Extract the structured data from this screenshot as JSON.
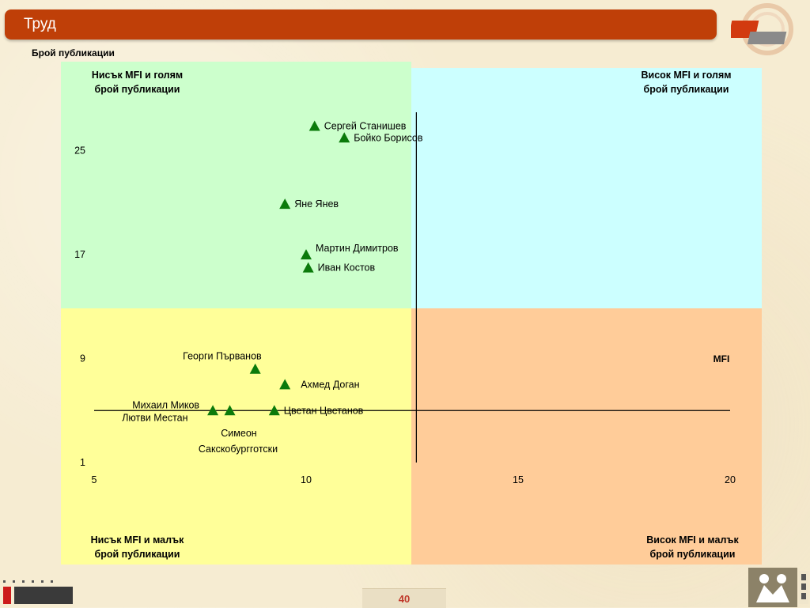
{
  "header": {
    "title": "Труд"
  },
  "footer": {
    "page_number": "40"
  },
  "colors": {
    "title_bar": "#bf3f08",
    "quad_top_left": "#ccffcc",
    "quad_top_right": "#ccffff",
    "quad_bottom_left": "#ffff99",
    "quad_bottom_right": "#ffcc99",
    "marker": "#0b7a0b"
  },
  "chart_data": {
    "type": "scatter",
    "ylabel": "Брой публикации",
    "xlabel": "MFI",
    "xlim": [
      5,
      20
    ],
    "ylim": [
      1,
      29
    ],
    "x_ticks": [
      5,
      10,
      15,
      20
    ],
    "y_ticks": [
      1,
      9,
      17,
      25
    ],
    "grid": false,
    "quadrant_divider": {
      "x": 12.6,
      "y": 5
    },
    "quadrant_labels": {
      "top_left": "Нисък MFI и голям\nброй публикации",
      "top_right": "Висок MFI и голям\nброй публикации",
      "bottom_left": "Нисък MFI и малък\nброй публикации",
      "bottom_right": "Висок MFI и малък\nброй публикации"
    },
    "points": [
      {
        "label": "Сергей Станишев",
        "x": 10.2,
        "y": 26.9
      },
      {
        "label": "Бойко Борисов",
        "x": 10.9,
        "y": 26.0
      },
      {
        "label": "Яне Янев",
        "x": 9.5,
        "y": 20.9
      },
      {
        "label": "Мартин Димитров",
        "x": 10.0,
        "y": 17.0
      },
      {
        "label": "Иван Костов",
        "x": 10.05,
        "y": 16.0
      },
      {
        "label": "Георги Първанов",
        "x": 8.8,
        "y": 8.2
      },
      {
        "label": "Ахмед Доган",
        "x": 9.5,
        "y": 7.0
      },
      {
        "label": "Михаил Миков",
        "x": 7.8,
        "y": 5.0
      },
      {
        "label": "Лютви Местан",
        "x": 8.2,
        "y": 5.0
      },
      {
        "label": "Цветан Цветанов",
        "x": 9.25,
        "y": 5.0
      }
    ],
    "extra_label": {
      "line1": "Симеон",
      "line2": "Сакскобургготски"
    }
  }
}
